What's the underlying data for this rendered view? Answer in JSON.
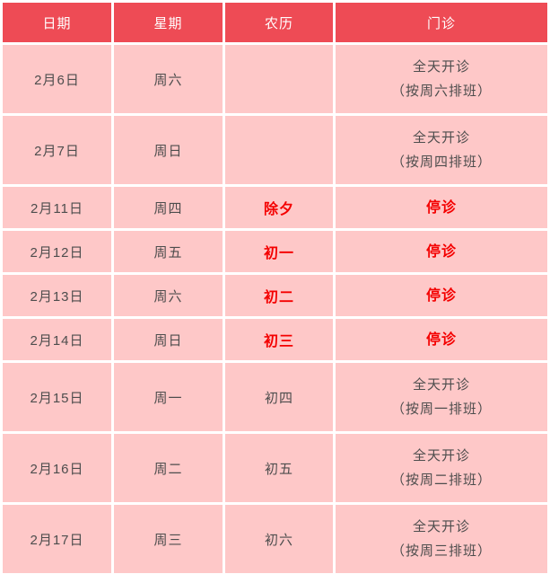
{
  "colors": {
    "header_bg": "#ee4b55",
    "header_text": "#ffffff",
    "cell_bg": "#fec8c8",
    "body_text": "#4d4d4d",
    "highlight_text": "#f40000",
    "gutter": "#ffffff"
  },
  "table": {
    "columns": [
      {
        "label": "日期"
      },
      {
        "label": "星期"
      },
      {
        "label": "农历"
      },
      {
        "label": "门诊"
      }
    ],
    "rows": [
      {
        "date": "2月6日",
        "weekday": "周六",
        "lunar": "",
        "clinic_line1": "全天开诊",
        "clinic_line2": "（按周六排班）",
        "highlight": false
      },
      {
        "date": "2月7日",
        "weekday": "周日",
        "lunar": "",
        "clinic_line1": "全天开诊",
        "clinic_line2": "（按周四排班）",
        "highlight": false
      },
      {
        "date": "2月11日",
        "weekday": "周四",
        "lunar": "除夕",
        "clinic_line1": "停诊",
        "clinic_line2": "",
        "highlight": true
      },
      {
        "date": "2月12日",
        "weekday": "周五",
        "lunar": "初一",
        "clinic_line1": "停诊",
        "clinic_line2": "",
        "highlight": true
      },
      {
        "date": "2月13日",
        "weekday": "周六",
        "lunar": "初二",
        "clinic_line1": "停诊",
        "clinic_line2": "",
        "highlight": true
      },
      {
        "date": "2月14日",
        "weekday": "周日",
        "lunar": "初三",
        "clinic_line1": "停诊",
        "clinic_line2": "",
        "highlight": true
      },
      {
        "date": "2月15日",
        "weekday": "周一",
        "lunar": "初四",
        "clinic_line1": "全天开诊",
        "clinic_line2": "（按周一排班）",
        "highlight": false
      },
      {
        "date": "2月16日",
        "weekday": "周二",
        "lunar": "初五",
        "clinic_line1": "全天开诊",
        "clinic_line2": "（按周二排班）",
        "highlight": false
      },
      {
        "date": "2月17日",
        "weekday": "周三",
        "lunar": "初六",
        "clinic_line1": "全天开诊",
        "clinic_line2": "（按周三排班）",
        "highlight": false
      }
    ]
  },
  "chart_data": {
    "type": "table",
    "title": "",
    "columns": [
      "日期",
      "星期",
      "农历",
      "门诊"
    ],
    "rows": [
      [
        "2月6日",
        "周六",
        "",
        "全天开诊（按周六排班）"
      ],
      [
        "2月7日",
        "周日",
        "",
        "全天开诊（按周四排班）"
      ],
      [
        "2月11日",
        "周四",
        "除夕",
        "停诊"
      ],
      [
        "2月12日",
        "周五",
        "初一",
        "停诊"
      ],
      [
        "2月13日",
        "周六",
        "初二",
        "停诊"
      ],
      [
        "2月14日",
        "周日",
        "初三",
        "停诊"
      ],
      [
        "2月15日",
        "周一",
        "初四",
        "全天开诊（按周一排班）"
      ],
      [
        "2月16日",
        "周二",
        "初五",
        "全天开诊（按周二排班）"
      ],
      [
        "2月17日",
        "周三",
        "初六",
        "全天开诊（按周三排班）"
      ]
    ],
    "layout_hints": {
      "header_style": "red background, white text",
      "highlight_rows": [
        2,
        3,
        4,
        5
      ],
      "highlight_style": "bold bright red text in lunar and clinic columns"
    }
  }
}
